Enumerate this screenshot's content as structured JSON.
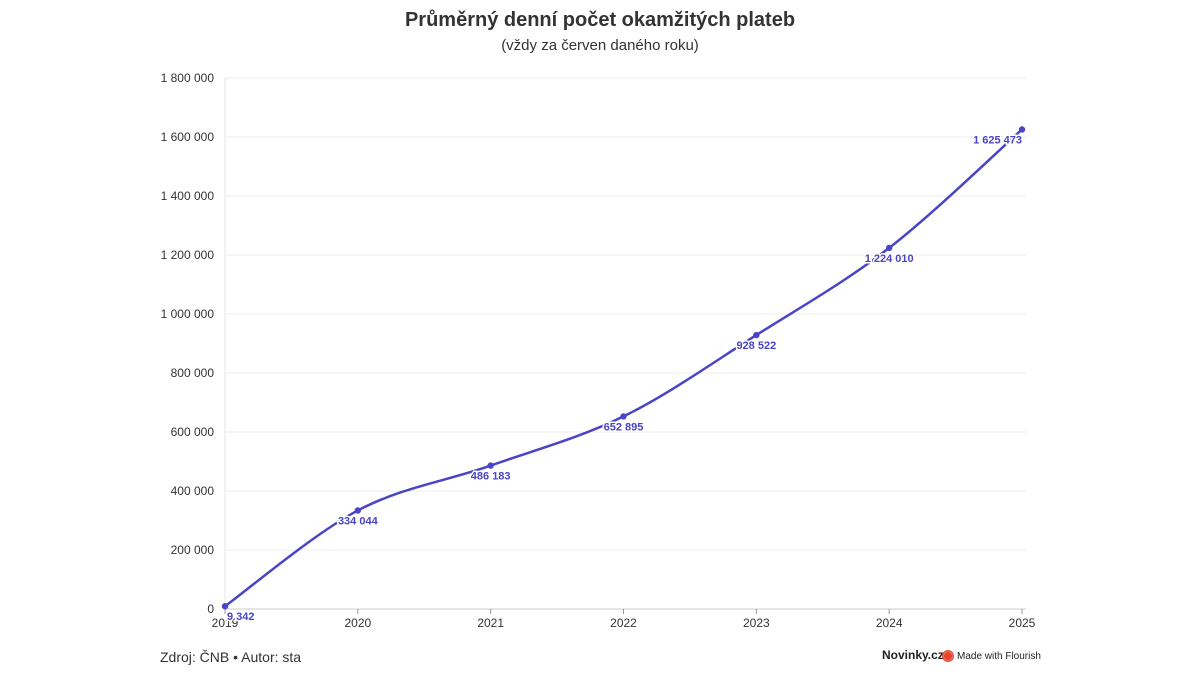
{
  "chart_data": {
    "type": "line",
    "title": "Průměrný denní počet okamžitých plateb",
    "subtitle": "(vždy za červen daného roku)",
    "x": [
      "2019",
      "2020",
      "2021",
      "2022",
      "2023",
      "2024",
      "2025"
    ],
    "series": [
      {
        "values": [
          9342,
          334044,
          486183,
          652895,
          928522,
          1224010,
          1625473
        ],
        "labels": [
          "9 342",
          "334 044",
          "486 183",
          "652 895",
          "928 522",
          "1 224 010",
          "1 625 473"
        ]
      }
    ],
    "ylim": [
      0,
      1800000
    ],
    "y_ticks": [
      0,
      200000,
      400000,
      600000,
      800000,
      1000000,
      1200000,
      1400000,
      1600000,
      1800000
    ],
    "y_tick_labels": [
      "0",
      "200 000",
      "400 000",
      "600 000",
      "800 000",
      "1 000 000",
      "1 200 000",
      "1 400 000",
      "1 600 000",
      "1 800 000"
    ],
    "grid": true,
    "line_color": "#4a44c6"
  },
  "footer": {
    "source": "Zdroj: ČNB • Autor: sta",
    "brand": "Novinky.cz",
    "made_with": "Made with Flourish"
  }
}
